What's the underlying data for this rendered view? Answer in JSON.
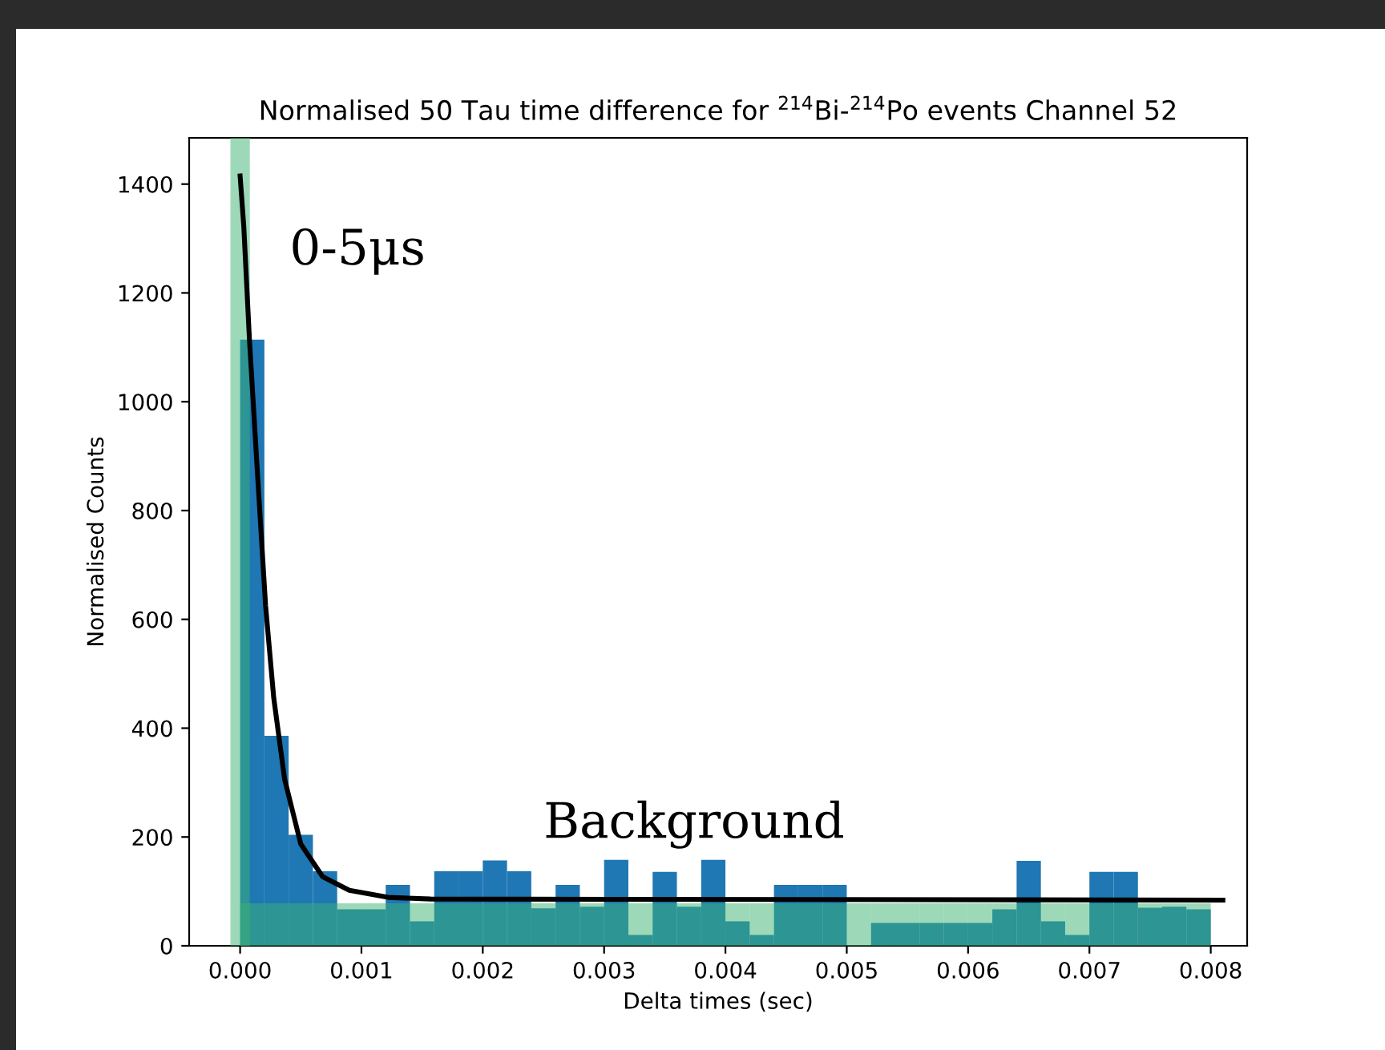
{
  "chart_data": {
    "type": "histogram",
    "title": "Normalised 50 Tau time difference for $^{214}$Bi-$^{214}$Po events Channel 52",
    "xlabel": "Delta times (sec)",
    "ylabel": "Normalised Counts",
    "bins": [
      0,
      0.0002,
      0.0004,
      0.0006,
      0.0008,
      0.001,
      0.0012,
      0.0014,
      0.0016,
      0.0018,
      0.002,
      0.0022,
      0.0024,
      0.0026,
      0.0028,
      0.003,
      0.0032,
      0.0034,
      0.0036,
      0.0038,
      0.004,
      0.0042,
      0.0044,
      0.0046,
      0.0048,
      0.005,
      0.0052,
      0.0054,
      0.0056,
      0.0058,
      0.006,
      0.0062,
      0.0064,
      0.0066,
      0.0068,
      0.007,
      0.0072,
      0.0074,
      0.0076,
      0.0078,
      0.008
    ],
    "series": [
      {
        "color": "#1f77b4",
        "values": [
          1114,
          386,
          204,
          137,
          67,
          67,
          112,
          45,
          137,
          137,
          157,
          137,
          69,
          112,
          72,
          158,
          20,
          136,
          72,
          158,
          45,
          20,
          112,
          112,
          112,
          0,
          42,
          42,
          42,
          42,
          42,
          67,
          156,
          45,
          20,
          136,
          136,
          70,
          72,
          67
        ]
      },
      {
        "color": "#3cb371",
        "values": [
          78,
          78,
          78,
          78,
          78,
          78,
          78,
          78,
          78,
          78,
          78,
          78,
          78,
          78,
          78,
          78,
          78,
          78,
          78,
          78,
          78,
          78,
          78,
          78,
          78,
          78,
          78,
          78,
          78,
          78,
          78,
          78,
          78,
          78,
          78,
          78,
          78,
          78,
          78,
          78
        ]
      },
      {
        "type": "line",
        "color": "#000000",
        "x": [
          0,
          3e-05,
          7.7e-05,
          0.000144,
          0.00021,
          0.000277,
          0.000367,
          0.0005,
          0.00068,
          0.0009,
          0.00122,
          0.00157,
          0.0081
        ],
        "values": [
          1415,
          1323,
          1114,
          865,
          625,
          456,
          306,
          187,
          127,
          102,
          89,
          86,
          84
        ]
      }
    ],
    "bands": [
      {
        "axis": "x",
        "from": -8e-05,
        "to": 8e-05,
        "color": "#3cb371"
      }
    ],
    "annotations": [
      "0-5μs",
      "Background"
    ],
    "xlim": [
      -0.00042,
      0.0083
    ],
    "ylim": [
      0,
      1485
    ],
    "xticks": [
      {
        "value": 0,
        "label": "0.000"
      },
      {
        "value": 0.001,
        "label": "0.001"
      },
      {
        "value": 0.002,
        "label": "0.002"
      },
      {
        "value": 0.003,
        "label": "0.003"
      },
      {
        "value": 0.004,
        "label": "0.004"
      },
      {
        "value": 0.005,
        "label": "0.005"
      },
      {
        "value": 0.006,
        "label": "0.006"
      },
      {
        "value": 0.007,
        "label": "0.007"
      },
      {
        "value": 0.008,
        "label": "0.008"
      }
    ],
    "yticks": [
      0,
      200,
      400,
      600,
      800,
      1000,
      1200,
      1400
    ],
    "grid": false,
    "legend": false
  }
}
